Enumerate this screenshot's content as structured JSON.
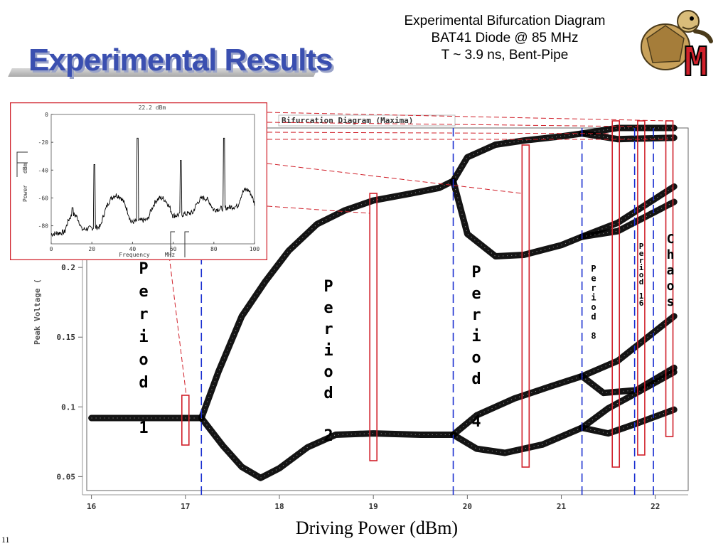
{
  "slide": {
    "title": "Experimental Results",
    "header_lines": [
      "Experimental Bifurcation Diagram",
      "BAT41 Diode @ 85 MHz",
      "T ~ 3.9 ns, Bent-Pipe"
    ],
    "bottom_label": "Driving Power (dBm)",
    "page_number": "11",
    "logo": {
      "icon": "terrapin-mascot-icon",
      "letter": "M",
      "color": "#d0202a"
    }
  },
  "chart_data": [
    {
      "type": "scatter",
      "title": "Bifurcation Diagram (Maxima)",
      "xlabel": "",
      "ylabel": "Peak Voltage (",
      "xlim": [
        15.95,
        22.35
      ],
      "ylim": [
        0.04,
        0.3
      ],
      "x_ticks": [
        "16",
        "17",
        "18",
        "19",
        "20",
        "21",
        "22"
      ],
      "y_ticks": [
        "0.05",
        "0.1",
        "0.15",
        "0.2"
      ],
      "bifurcation_points": [
        17.17,
        19.85,
        21.22,
        21.78,
        21.98
      ],
      "sample_windows": [
        17.0,
        19.0,
        20.62,
        21.58,
        21.85,
        22.15
      ],
      "regions": [
        {
          "label": "Period 1",
          "letters": [
            "P",
            "e",
            "r",
            "i",
            "o",
            "d",
            " ",
            "1"
          ]
        },
        {
          "label": "Period 2",
          "letters": [
            "P",
            "e",
            "r",
            "i",
            "o",
            "d",
            " ",
            "2"
          ]
        },
        {
          "label": "Period 4",
          "letters": [
            "P",
            "e",
            "r",
            "i",
            "o",
            "d",
            " ",
            "4"
          ]
        },
        {
          "label": "Period 8",
          "letters": [
            "P",
            "e",
            "r",
            "i",
            "o",
            "d",
            " ",
            "8"
          ]
        },
        {
          "label": "Period 16",
          "letters": [
            "P",
            "e",
            "r",
            "i",
            "o",
            "d",
            " ",
            "1",
            "6"
          ]
        },
        {
          "label": "Chaos",
          "letters": [
            "C",
            "h",
            "a",
            "o",
            "s"
          ]
        }
      ],
      "branches": [
        {
          "name": "period-1",
          "points": [
            [
              16.0,
              0.092
            ],
            [
              16.5,
              0.092
            ],
            [
              17.0,
              0.092
            ],
            [
              17.17,
              0.092
            ]
          ]
        },
        {
          "name": "p2-upper",
          "points": [
            [
              17.17,
              0.092
            ],
            [
              17.35,
              0.125
            ],
            [
              17.6,
              0.165
            ],
            [
              17.85,
              0.19
            ],
            [
              18.1,
              0.212
            ],
            [
              18.4,
              0.231
            ],
            [
              18.7,
              0.241
            ],
            [
              19.0,
              0.248
            ],
            [
              19.4,
              0.253
            ],
            [
              19.7,
              0.257
            ],
            [
              19.85,
              0.262
            ]
          ]
        },
        {
          "name": "p2-lower",
          "points": [
            [
              17.17,
              0.092
            ],
            [
              17.4,
              0.072
            ],
            [
              17.6,
              0.057
            ],
            [
              17.8,
              0.049
            ],
            [
              18.0,
              0.056
            ],
            [
              18.3,
              0.071
            ],
            [
              18.6,
              0.08
            ],
            [
              19.0,
              0.081
            ],
            [
              19.5,
              0.08
            ],
            [
              19.85,
              0.08
            ]
          ]
        },
        {
          "name": "p4-a",
          "points": [
            [
              19.85,
              0.262
            ],
            [
              20.0,
              0.279
            ],
            [
              20.3,
              0.288
            ],
            [
              20.6,
              0.291
            ],
            [
              21.0,
              0.294
            ],
            [
              21.22,
              0.296
            ]
          ]
        },
        {
          "name": "p4-b",
          "points": [
            [
              19.85,
              0.262
            ],
            [
              20.0,
              0.224
            ],
            [
              20.3,
              0.208
            ],
            [
              20.6,
              0.209
            ],
            [
              21.0,
              0.216
            ],
            [
              21.22,
              0.222
            ]
          ]
        },
        {
          "name": "p4-c",
          "points": [
            [
              19.85,
              0.08
            ],
            [
              20.1,
              0.094
            ],
            [
              20.5,
              0.106
            ],
            [
              20.9,
              0.115
            ],
            [
              21.22,
              0.122
            ]
          ]
        },
        {
          "name": "p4-d",
          "points": [
            [
              19.85,
              0.08
            ],
            [
              20.1,
              0.07
            ],
            [
              20.4,
              0.067
            ],
            [
              20.8,
              0.073
            ],
            [
              21.22,
              0.085
            ]
          ]
        },
        {
          "name": "p8-a",
          "points": [
            [
              21.22,
              0.296
            ],
            [
              21.6,
              0.3
            ],
            [
              22.2,
              0.3
            ]
          ]
        },
        {
          "name": "p8-b",
          "points": [
            [
              21.22,
              0.296
            ],
            [
              21.6,
              0.292
            ],
            [
              22.2,
              0.293
            ]
          ]
        },
        {
          "name": "p8-c",
          "points": [
            [
              21.22,
              0.222
            ],
            [
              21.6,
              0.232
            ],
            [
              22.2,
              0.258
            ]
          ]
        },
        {
          "name": "p8-d",
          "points": [
            [
              21.22,
              0.222
            ],
            [
              21.6,
              0.226
            ],
            [
              22.2,
              0.247
            ]
          ]
        },
        {
          "name": "p8-e",
          "points": [
            [
              21.22,
              0.122
            ],
            [
              21.6,
              0.133
            ],
            [
              22.2,
              0.165
            ]
          ]
        },
        {
          "name": "p8-f",
          "points": [
            [
              21.22,
              0.122
            ],
            [
              21.45,
              0.11
            ],
            [
              21.8,
              0.112
            ],
            [
              22.2,
              0.128
            ]
          ]
        },
        {
          "name": "p8-g",
          "points": [
            [
              21.22,
              0.085
            ],
            [
              21.5,
              0.099
            ],
            [
              21.8,
              0.11
            ],
            [
              22.2,
              0.125
            ]
          ]
        },
        {
          "name": "p8-h",
          "points": [
            [
              21.22,
              0.085
            ],
            [
              21.5,
              0.081
            ],
            [
              21.8,
              0.088
            ],
            [
              22.2,
              0.098
            ]
          ]
        }
      ]
    },
    {
      "type": "line",
      "title": "22.2 dBm",
      "xlabel": "Frequency",
      "ylabel": "Power",
      "xlim": [
        0,
        100
      ],
      "ylim": [
        -93,
        0
      ],
      "x_ticks": [
        "0",
        "20",
        "40",
        "60",
        "80",
        "100"
      ],
      "y_ticks": [
        "0",
        "-20",
        "-40",
        "-60",
        "-80"
      ],
      "annotations": [
        "dBm",
        "MHz"
      ],
      "peaks": [
        {
          "x": 21.25,
          "y": -36
        },
        {
          "x": 42.5,
          "y": -17
        },
        {
          "x": 63.75,
          "y": -33
        },
        {
          "x": 85.0,
          "y": -17
        }
      ]
    }
  ]
}
